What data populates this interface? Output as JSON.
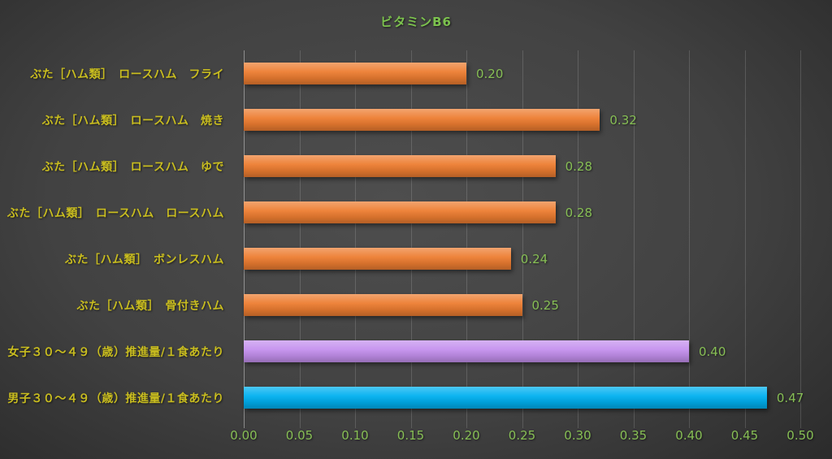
{
  "title": "ビタミンB6",
  "colors": {
    "background_center": "#4e4e4e",
    "background_edge": "#2a2a2a",
    "title_green": "#7cc24e",
    "value_green": "#87bf55",
    "category_yellow": "#c9bd1f",
    "gridline": "rgba(255,255,255,0.15)",
    "axis_line": "rgba(255,255,255,0.40)",
    "bar_orange": "#ED7D31",
    "bar_purple": "#C490EE",
    "bar_cyan": "#00B0F0"
  },
  "chart_data": {
    "type": "bar",
    "orientation": "horizontal",
    "title": "ビタミンB6",
    "categories": [
      "ぶた［ハム類］　ロースハム　フライ",
      "ぶた［ハム類］　ロースハム　焼き",
      "ぶた［ハム類］　ロースハム　ゆで",
      "ぶた［ハム類］　ロースハム　ロースハム",
      "ぶた［ハム類］　ボンレスハム",
      "ぶた［ハム類］　骨付きハム",
      "女子３０～４９（歳）推進量/１食あたり",
      "男子３０～４９（歳）推進量/１食あたり"
    ],
    "values": [
      0.2,
      0.32,
      0.28,
      0.28,
      0.24,
      0.25,
      0.4,
      0.47
    ],
    "value_labels": [
      "0.20",
      "0.32",
      "0.28",
      "0.28",
      "0.24",
      "0.25",
      "0.40",
      "0.47"
    ],
    "bar_colors": [
      "#ED7D31",
      "#ED7D31",
      "#ED7D31",
      "#ED7D31",
      "#ED7D31",
      "#ED7D31",
      "#C490EE",
      "#00B0F0"
    ],
    "xlim": [
      0,
      0.5
    ],
    "xticks": [
      "0.00",
      "0.05",
      "0.10",
      "0.15",
      "0.20",
      "0.25",
      "0.30",
      "0.35",
      "0.40",
      "0.45",
      "0.50"
    ],
    "grid": true,
    "legend": false
  }
}
